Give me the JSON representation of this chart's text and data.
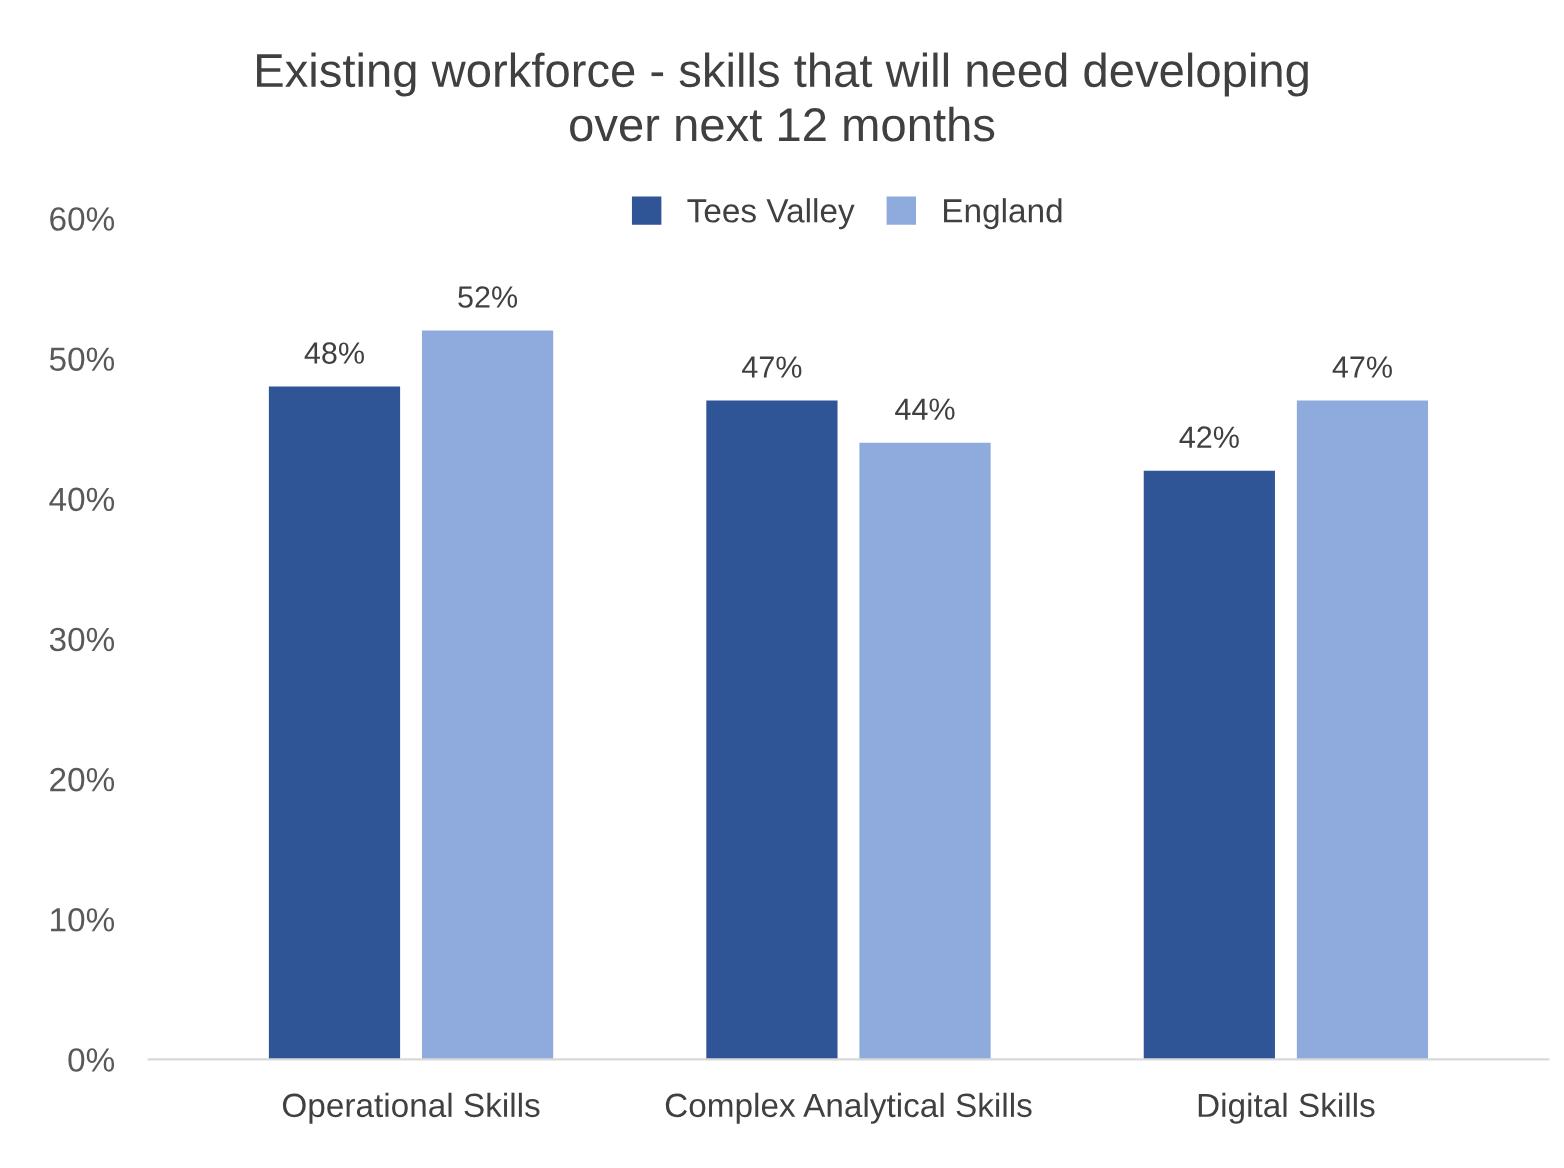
{
  "chart_data": {
    "type": "bar",
    "title": "Existing workforce - skills that will need developing\nover next 12 months",
    "categories": [
      "Operational Skills",
      "Complex Analytical Skills",
      "Digital Skills"
    ],
    "series": [
      {
        "name": "Tees Valley",
        "color": "#2f5597",
        "values": [
          48,
          47,
          42
        ],
        "value_labels": [
          "48%",
          "47%",
          "42%"
        ]
      },
      {
        "name": "England",
        "color": "#8faadc",
        "values": [
          52,
          44,
          47
        ],
        "value_labels": [
          "52%",
          "44%",
          "47%"
        ]
      }
    ],
    "ylim": [
      0,
      60
    ],
    "yticks": [
      {
        "value": 0,
        "label": "0%"
      },
      {
        "value": 10,
        "label": "10%"
      },
      {
        "value": 20,
        "label": "20%"
      },
      {
        "value": 30,
        "label": "30%"
      },
      {
        "value": 40,
        "label": "40%"
      },
      {
        "value": 50,
        "label": "50%"
      },
      {
        "value": 60,
        "label": "60%"
      }
    ],
    "grid": false,
    "legend": "top"
  }
}
